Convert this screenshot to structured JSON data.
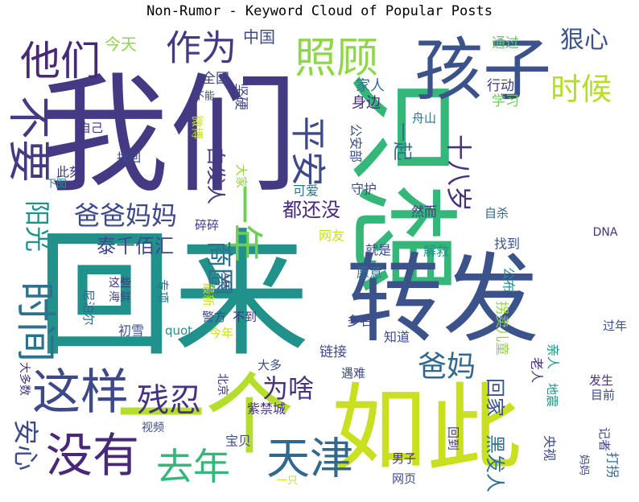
{
  "chart_data": {
    "type": "wordcloud",
    "title": "Non-Rumor - Keyword Cloud of Popular Posts",
    "words": [
      {
        "text": "我们",
        "weight": 100,
        "color": "#443983"
      },
      {
        "text": "回来",
        "weight": 98,
        "color": "#21918c"
      },
      {
        "text": "只想",
        "weight": 90,
        "color": "#35b779"
      },
      {
        "text": "转发",
        "weight": 86,
        "color": "#3b528b"
      },
      {
        "text": "一个",
        "weight": 80,
        "color": "#b5de2b"
      },
      {
        "text": "如此",
        "weight": 80,
        "color": "#c8e020"
      },
      {
        "text": "孩子",
        "weight": 70,
        "color": "#3b528b"
      },
      {
        "text": "这样",
        "weight": 50,
        "color": "#3e4989"
      },
      {
        "text": "没有",
        "weight": 48,
        "color": "#482878"
      },
      {
        "text": "不要",
        "weight": 46,
        "color": "#443983"
      },
      {
        "text": "时间",
        "weight": 46,
        "color": "#2c728e"
      },
      {
        "text": "照顾",
        "weight": 45,
        "color": "#8fd744"
      },
      {
        "text": "他们",
        "weight": 44,
        "color": "#482878"
      },
      {
        "text": "天津",
        "weight": 44,
        "color": "#31688e"
      },
      {
        "text": "一年",
        "weight": 42,
        "color": "#6ece58"
      },
      {
        "text": "去年",
        "weight": 40,
        "color": "#35b779"
      },
      {
        "text": "作为",
        "weight": 38,
        "color": "#443983"
      },
      {
        "text": "平安",
        "weight": 38,
        "color": "#3e4989"
      },
      {
        "text": "时候",
        "weight": 36,
        "color": "#b5de2b"
      },
      {
        "text": "残忍",
        "weight": 34,
        "color": "#46327e"
      },
      {
        "text": "爸爸妈妈",
        "weight": 30,
        "color": "#3e4989"
      },
      {
        "text": "爸妈",
        "weight": 30,
        "color": "#31688e"
      },
      {
        "text": "商圈",
        "weight": 30,
        "color": "#2c728e"
      },
      {
        "text": "狠心",
        "weight": 28,
        "color": "#3b528b"
      },
      {
        "text": "十八岁",
        "weight": 28,
        "color": "#46327e"
      },
      {
        "text": "阳光",
        "weight": 28,
        "color": "#21918c"
      },
      {
        "text": "为啥",
        "weight": 28,
        "color": "#46327e"
      },
      {
        "text": "安心",
        "weight": 26,
        "color": "#3e4989"
      },
      {
        "text": "都还没",
        "weight": 22,
        "color": "#482878"
      },
      {
        "text": "泰千佰汇",
        "weight": 22,
        "color": "#3e4989"
      },
      {
        "text": "一起",
        "weight": 22,
        "color": "#2c728e"
      },
      {
        "text": "回家",
        "weight": 22,
        "color": "#3b528b"
      },
      {
        "text": "黑发人",
        "weight": 22,
        "color": "#2c728e"
      },
      {
        "text": "白发人",
        "weight": 22,
        "color": "#443983"
      },
      {
        "text": "中国",
        "weight": 18,
        "color": "#3e4989"
      },
      {
        "text": "今天",
        "weight": 18,
        "color": "#8fd744"
      },
      {
        "text": "家人",
        "weight": 16,
        "color": "#2c728e"
      },
      {
        "text": "通过",
        "weight": 16,
        "color": "#5ec962"
      },
      {
        "text": "全国",
        "weight": 16,
        "color": "#3e4989"
      },
      {
        "text": "坚硬",
        "weight": 16,
        "color": "#3e4989"
      },
      {
        "text": "行动",
        "weight": 16,
        "color": "#443983"
      },
      {
        "text": "身边",
        "weight": 16,
        "color": "#482878"
      },
      {
        "text": "学习",
        "weight": 14,
        "color": "#6ece58"
      },
      {
        "text": "舟山",
        "weight": 14,
        "color": "#2c728e"
      },
      {
        "text": "自己",
        "weight": 14,
        "color": "#46327e"
      },
      {
        "text": "微博",
        "weight": 14,
        "color": "#c8e020"
      },
      {
        "text": "找回",
        "weight": 14,
        "color": "#3e4989"
      },
      {
        "text": "此刻",
        "weight": 14,
        "color": "#443983"
      },
      {
        "text": "大家",
        "weight": 14,
        "color": "#8fd744"
      },
      {
        "text": "公安部",
        "weight": 14,
        "color": "#3b528b"
      },
      {
        "text": "守护",
        "weight": 14,
        "color": "#3e4989"
      },
      {
        "text": "可爱",
        "weight": 14,
        "color": "#2c728e"
      },
      {
        "text": "碎碎",
        "weight": 14,
        "color": "#46327e"
      },
      {
        "text": "然而",
        "weight": 14,
        "color": "#443983"
      },
      {
        "text": "自杀",
        "weight": 14,
        "color": "#31688e"
      },
      {
        "text": "网友",
        "weight": 14,
        "color": "#c8e020"
      },
      {
        "text": "就是",
        "weight": 14,
        "color": "#3e4989"
      },
      {
        "text": "解救",
        "weight": 14,
        "color": "#21918c"
      },
      {
        "text": "找到",
        "weight": 14,
        "color": "#3b528b"
      },
      {
        "text": "DNA",
        "weight": 12,
        "color": "#46327e"
      },
      {
        "text": "愿意",
        "weight": 14,
        "color": "#2c728e"
      },
      {
        "text": "公布",
        "weight": 14,
        "color": "#21918c"
      },
      {
        "text": "这些",
        "weight": 13,
        "color": "#46327e"
      },
      {
        "text": "海鲜",
        "weight": 13,
        "color": "#3e4989"
      },
      {
        "text": "人民",
        "weight": 12,
        "color": "#3e4989"
      },
      {
        "text": "专项",
        "weight": 13,
        "color": "#2c728e"
      },
      {
        "text": "最新",
        "weight": 13,
        "color": "#c8e020"
      },
      {
        "text": "尼泊尔",
        "weight": 13,
        "color": "#31688e"
      },
      {
        "text": "警方",
        "weight": 13,
        "color": "#3e4989"
      },
      {
        "text": "不到",
        "weight": 13,
        "color": "#46327e"
      },
      {
        "text": "多名",
        "weight": 14,
        "color": "#3e4989"
      },
      {
        "text": "初雪",
        "weight": 14,
        "color": "#3b528b"
      },
      {
        "text": "quot",
        "weight": 13,
        "color": "#21918c"
      },
      {
        "text": "今年",
        "weight": 13,
        "color": "#c8e020"
      },
      {
        "text": "知道",
        "weight": 14,
        "color": "#3e4989"
      },
      {
        "text": "拐卖儿童",
        "weight": 14,
        "color": "#8fd744"
      },
      {
        "text": "过年",
        "weight": 14,
        "color": "#3b528b"
      },
      {
        "text": "大多数",
        "weight": 13,
        "color": "#46327e"
      },
      {
        "text": "大多",
        "weight": 14,
        "color": "#3e4989"
      },
      {
        "text": "链接",
        "weight": 16,
        "color": "#3e4989"
      },
      {
        "text": "亲人",
        "weight": 14,
        "color": "#21918c"
      },
      {
        "text": "老人",
        "weight": 14,
        "color": "#46327e"
      },
      {
        "text": "遇难",
        "weight": 14,
        "color": "#3e4989"
      },
      {
        "text": "北京",
        "weight": 12,
        "color": "#46327e"
      },
      {
        "text": "地震",
        "weight": 13,
        "color": "#21918c"
      },
      {
        "text": "发生",
        "weight": 13,
        "color": "#46327e"
      },
      {
        "text": "目前",
        "weight": 13,
        "color": "#3e4989"
      },
      {
        "text": "紫禁城",
        "weight": 15,
        "color": "#46327e"
      },
      {
        "text": "视频",
        "weight": 12,
        "color": "#3e4989"
      },
      {
        "text": "宝贝",
        "weight": 14,
        "color": "#3b528b"
      },
      {
        "text": "回到",
        "weight": 13,
        "color": "#46327e"
      },
      {
        "text": "记者",
        "weight": 13,
        "color": "#3e4989"
      },
      {
        "text": "央视",
        "weight": 14,
        "color": "#3e4989"
      },
      {
        "text": "打拐",
        "weight": 14,
        "color": "#31688e"
      },
      {
        "text": "妈妈",
        "weight": 12,
        "color": "#3e4989"
      },
      {
        "text": "男子",
        "weight": 13,
        "color": "#46327e"
      },
      {
        "text": "一只",
        "weight": 12,
        "color": "#c8e020"
      },
      {
        "text": "网页",
        "weight": 13,
        "color": "#3e4989"
      },
      {
        "text": "不能",
        "weight": 12,
        "color": "#3e4989"
      },
      {
        "text": "下图",
        "weight": 12,
        "color": "#21918c"
      }
    ]
  }
}
